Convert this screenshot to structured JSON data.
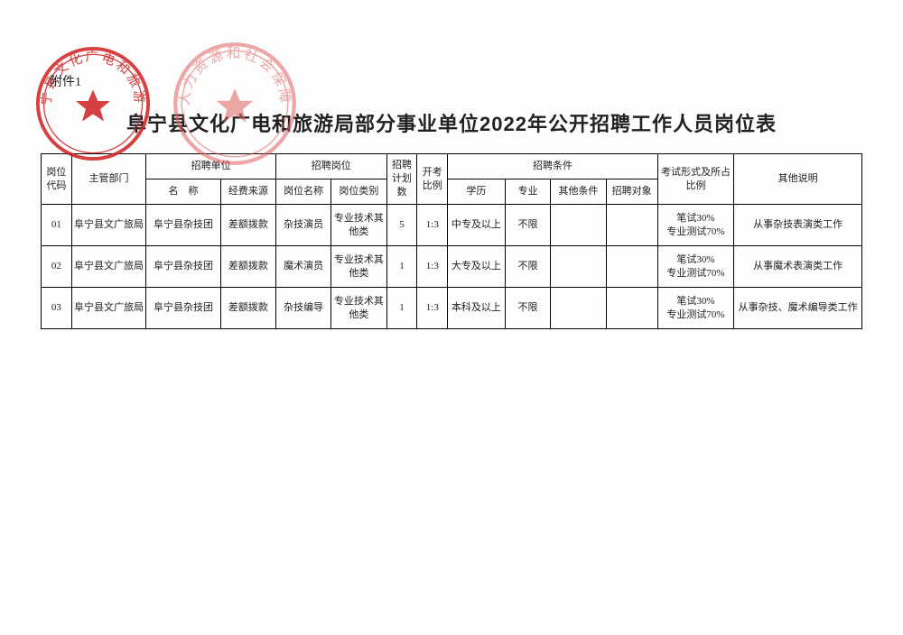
{
  "attachment_label": "附件1",
  "title": "阜宁县文化广电和旅游局部分事业单位2022年公开招聘工作人员岗位表",
  "headers": {
    "code": "岗位代码",
    "dept": "主管部门",
    "unit_group": "招聘单位",
    "unit_name": "名　称",
    "unit_fund": "经费来源",
    "post_group": "招聘岗位",
    "post_name": "岗位名称",
    "post_type": "岗位类别",
    "plan": "招聘计划数",
    "ratio": "开考比例",
    "cond_group": "招聘条件",
    "edu": "学历",
    "major": "专业",
    "other_cond": "其他条件",
    "target": "招聘对象",
    "exam": "考试形式及所占比例",
    "remark": "其他说明"
  },
  "col_widths": {
    "code": 32,
    "dept": 78,
    "unit_name": 78,
    "unit_fund": 58,
    "post_name": 58,
    "post_type": 58,
    "plan": 32,
    "ratio": 32,
    "edu": 60,
    "major": 48,
    "other_cond": 58,
    "target": 54,
    "exam": 80,
    "remark": 134
  },
  "rows": [
    {
      "code": "01",
      "dept": "阜宁县文广旅局",
      "unit_name": "阜宁县杂技团",
      "unit_fund": "差额拨款",
      "post_name": "杂技演员",
      "post_type": "专业技术其他类",
      "plan": "5",
      "ratio": "1:3",
      "edu": "中专及以上",
      "major": "不限",
      "other_cond": "",
      "target": "",
      "exam": "笔试30%\n专业测试70%",
      "remark": "从事杂技表演类工作"
    },
    {
      "code": "02",
      "dept": "阜宁县文广旅局",
      "unit_name": "阜宁县杂技团",
      "unit_fund": "差额拨款",
      "post_name": "魔术演员",
      "post_type": "专业技术其他类",
      "plan": "1",
      "ratio": "1:3",
      "edu": "大专及以上",
      "major": "不限",
      "other_cond": "",
      "target": "",
      "exam": "笔试30%\n专业测试70%",
      "remark": "从事魔术表演类工作"
    },
    {
      "code": "03",
      "dept": "阜宁县文广旅局",
      "unit_name": "阜宁县杂技团",
      "unit_fund": "差额拨款",
      "post_name": "杂技编导",
      "post_type": "专业技术其他类",
      "plan": "1",
      "ratio": "1:3",
      "edu": "本科及以上",
      "major": "不限",
      "other_cond": "",
      "target": "",
      "exam": "笔试30%\n专业测试70%",
      "remark": "从事杂技、魔术编导类工作"
    }
  ],
  "stamps": {
    "stamp1_text": "阜宁县文化广电和旅游局",
    "stamp2_text": "人力资源和社会保障",
    "color1": "#d02020",
    "color2": "#e06060"
  }
}
